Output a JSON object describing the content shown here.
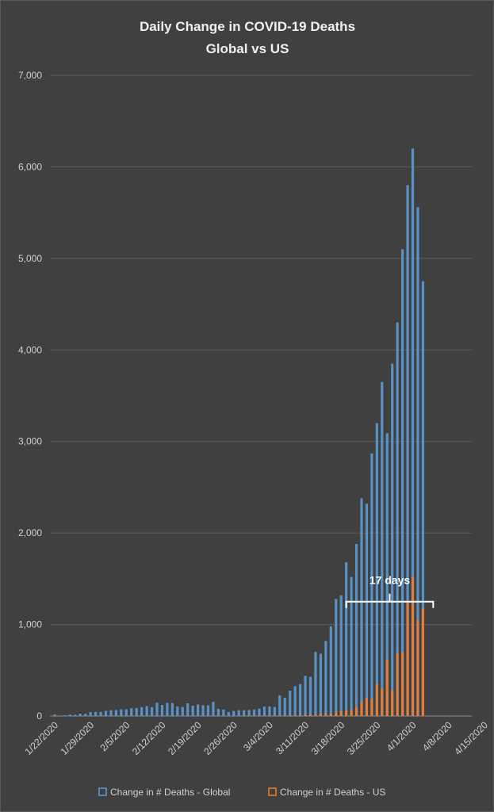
{
  "chart_data": {
    "type": "bar",
    "title": "Daily Change in COVID-19 Deaths",
    "subtitle": "Global vs US",
    "ylim": [
      0,
      7000
    ],
    "yticks": [
      "0",
      "1,000",
      "2,000",
      "3,000",
      "4,000",
      "5,000",
      "6,000",
      "7,000"
    ],
    "ytick_values": [
      0,
      1000,
      2000,
      3000,
      4000,
      5000,
      6000,
      7000
    ],
    "xticks": [
      "1/22/2020",
      "1/29/2020",
      "2/5/2020",
      "2/12/2020",
      "2/19/2020",
      "2/26/2020",
      "3/4/2020",
      "3/11/2020",
      "3/18/2020",
      "3/25/2020",
      "4/1/2020",
      "4/8/2020",
      "4/15/2020"
    ],
    "grid": true,
    "legend_position": "bottom",
    "x_start": "1/22/2020",
    "series": [
      {
        "name": "Change in # Deaths - Global",
        "color": "#5b9bd5",
        "values": [
          17,
          1,
          8,
          16,
          14,
          26,
          26,
          43,
          46,
          45,
          57,
          64,
          66,
          73,
          73,
          86,
          89,
          97,
          108,
          97,
          146,
          121,
          143,
          142,
          105,
          98,
          139,
          112,
          126,
          119,
          117,
          155,
          78,
          71,
          43,
          56,
          64,
          64,
          66,
          72,
          80,
          103,
          105,
          100,
          225,
          200,
          277,
          327,
          348,
          439,
          430,
          700,
          680,
          820,
          980,
          1280,
          1320,
          1680,
          1520,
          1880,
          2380,
          2320,
          2870,
          3200,
          3650,
          3090,
          3850,
          4300,
          5100,
          5800,
          6200,
          5560,
          4750
        ]
      },
      {
        "name": "Change in # Deaths - US",
        "color": "#ed7d31",
        "values": [
          0,
          0,
          0,
          0,
          0,
          0,
          0,
          0,
          0,
          0,
          0,
          0,
          0,
          0,
          0,
          0,
          0,
          0,
          0,
          0,
          0,
          0,
          0,
          0,
          0,
          0,
          0,
          0,
          0,
          0,
          0,
          0,
          0,
          0,
          0,
          0,
          0,
          0,
          1,
          1,
          1,
          2,
          3,
          4,
          5,
          6,
          8,
          8,
          10,
          12,
          14,
          18,
          20,
          24,
          30,
          45,
          55,
          60,
          70,
          100,
          160,
          200,
          180,
          350,
          300,
          620,
          280,
          690,
          700,
          1250,
          1520,
          1050,
          1180
        ]
      }
    ],
    "annotations": [
      {
        "text": "17 days",
        "x_start": "3/19/2020",
        "x_end": "4/5/2020",
        "y": 1250
      }
    ]
  }
}
